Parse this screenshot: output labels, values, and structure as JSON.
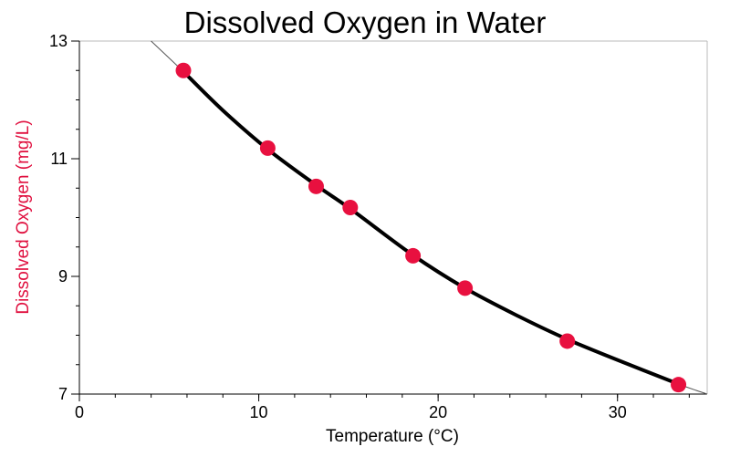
{
  "colors": {
    "point": "#e8103f",
    "fit_line": "#000000",
    "ylabel": "#e0103f",
    "axis": "#000000",
    "frame": "#bbbbbb"
  },
  "chart_data": {
    "type": "scatter",
    "title": "Dissolved Oxygen in Water",
    "xlabel": "Temperature (°C)",
    "ylabel": "Dissolved Oxygen (mg/L)",
    "xlim": [
      0,
      35
    ],
    "ylim": [
      7,
      13
    ],
    "x_ticks": [
      0,
      10,
      20,
      30
    ],
    "x_tick_labels": [
      "0",
      "10",
      "20",
      "30"
    ],
    "x_minor_step": 2,
    "y_ticks": [
      7,
      9,
      11,
      13
    ],
    "y_tick_labels": [
      "7",
      "9",
      "11",
      "13"
    ],
    "y_minor_step": 0.5,
    "grid": false,
    "series": [
      {
        "x": [
          5.8,
          10.5,
          13.2,
          15.1,
          18.6,
          21.5,
          27.2,
          33.4
        ],
        "y": [
          12.5,
          11.18,
          10.53,
          10.17,
          9.35,
          8.8,
          7.9,
          7.16
        ]
      }
    ],
    "fit_curve": {
      "x": [
        4.0,
        5.8,
        8.0,
        10.5,
        13.2,
        15.1,
        18.6,
        21.5,
        24.5,
        27.2,
        30.0,
        33.4,
        35.0
      ],
      "y": [
        13.0,
        12.48,
        11.82,
        11.16,
        10.55,
        10.15,
        9.36,
        8.8,
        8.32,
        7.93,
        7.58,
        7.17,
        7.0
      ]
    }
  }
}
